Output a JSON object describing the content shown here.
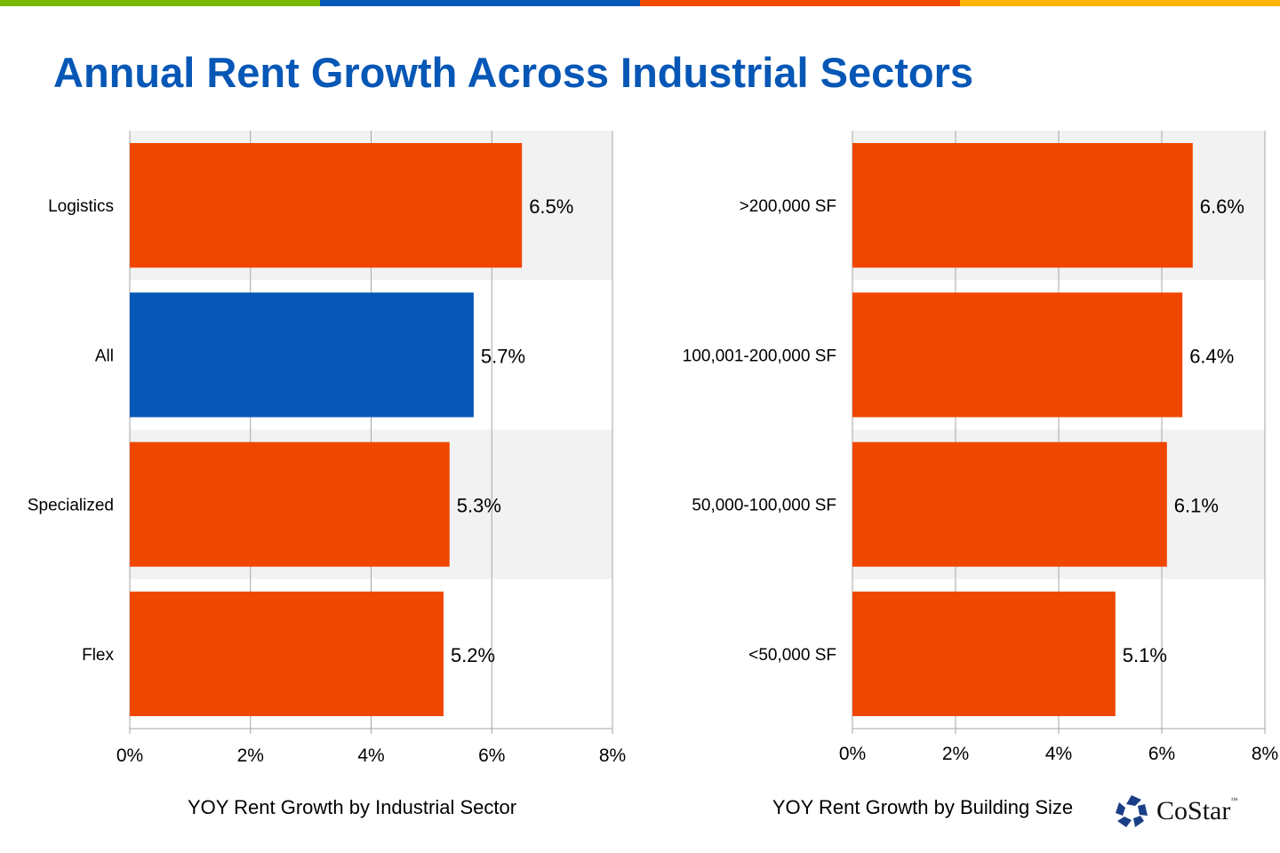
{
  "title": "Annual Rent Growth Across Industrial Sectors",
  "top_bar_colors": [
    "#79b800",
    "#0657b6",
    "#f04a00",
    "#ffb400"
  ],
  "logo": {
    "text": "CoStar",
    "tm": "™",
    "color": "#1b3f86"
  },
  "chart_data": [
    {
      "type": "bar",
      "orientation": "horizontal",
      "title": "YOY Rent Growth by Industrial Sector",
      "categories": [
        "Logistics",
        "All",
        "Specialized",
        "Flex"
      ],
      "values": [
        6.5,
        5.7,
        5.3,
        5.2
      ],
      "value_labels": [
        "6.5%",
        "5.7%",
        "5.3%",
        "5.2%"
      ],
      "bar_colors": [
        "#ef4600",
        "#0657b6",
        "#ef4600",
        "#ef4600"
      ],
      "xlim": [
        0,
        8
      ],
      "xticks": [
        "0%",
        "2%",
        "4%",
        "6%",
        "8%"
      ],
      "grid": true
    },
    {
      "type": "bar",
      "orientation": "horizontal",
      "title": "YOY Rent Growth by Building Size",
      "categories": [
        ">200,000 SF",
        "100,001-200,000 SF",
        "50,000-100,000 SF",
        "<50,000 SF"
      ],
      "values": [
        6.6,
        6.4,
        6.1,
        5.1
      ],
      "value_labels": [
        "6.6%",
        "6.4%",
        "6.1%",
        "5.1%"
      ],
      "bar_colors": [
        "#ef4600",
        "#ef4600",
        "#ef4600",
        "#ef4600"
      ],
      "xlim": [
        0,
        8
      ],
      "xticks": [
        "0%",
        "2%",
        "4%",
        "6%",
        "8%"
      ],
      "grid": true
    }
  ]
}
